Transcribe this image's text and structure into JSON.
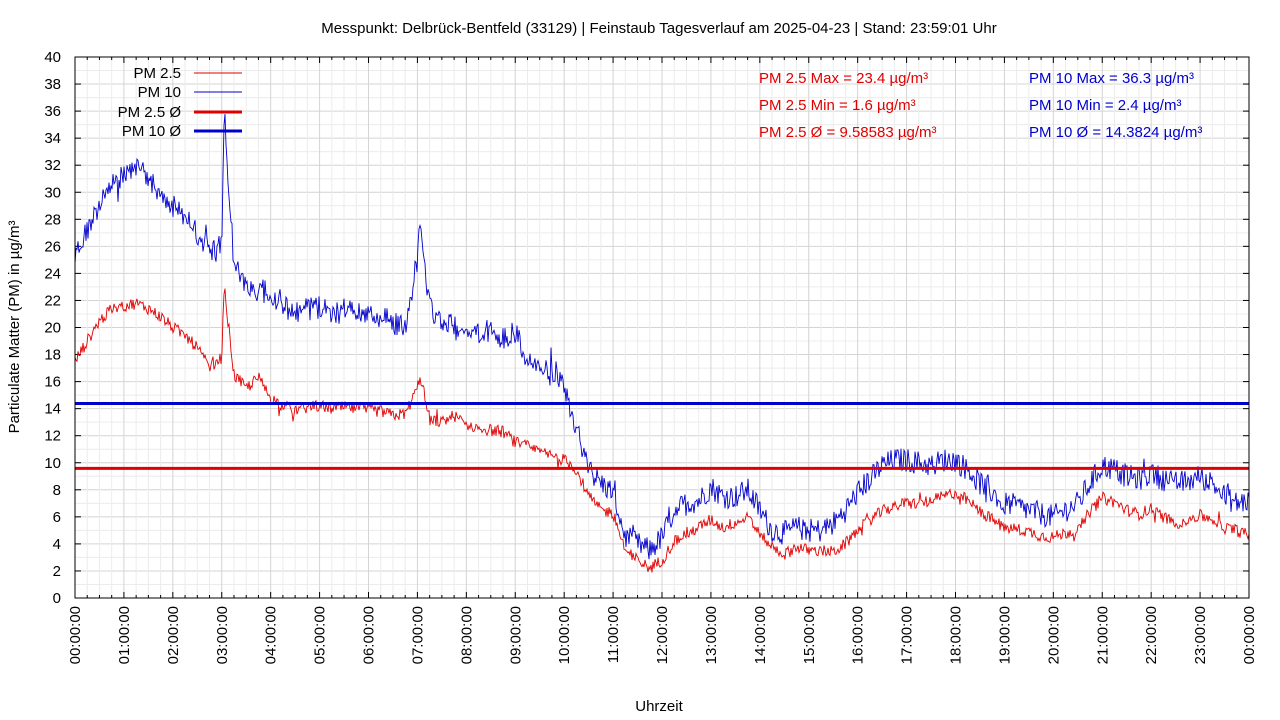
{
  "chart_data": {
    "type": "line",
    "title": "Messpunkt: Delbrück-Bentfeld (33129) | Feinstaub Tagesverlauf am 2025-04-23 | Stand: 23:59:01 Uhr",
    "xlabel": "Uhrzeit",
    "ylabel": "Particulate Matter (PM) in µg/m³",
    "ylim": [
      0,
      40
    ],
    "xlim": [
      "00:00:00",
      "24:00:00"
    ],
    "grid": true,
    "legend_position": "top-left",
    "x_tick_labels": [
      "00:00:00",
      "01:00:00",
      "02:00:00",
      "03:00:00",
      "04:00:00",
      "05:00:00",
      "06:00:00",
      "07:00:00",
      "08:00:00",
      "09:00:00",
      "10:00:00",
      "11:00:00",
      "12:00:00",
      "13:00:00",
      "14:00:00",
      "15:00:00",
      "16:00:00",
      "17:00:00",
      "18:00:00",
      "19:00:00",
      "20:00:00",
      "21:00:00",
      "22:00:00",
      "23:00:00",
      "00:00:00"
    ],
    "y_tick_labels": [
      "0",
      "2",
      "4",
      "6",
      "8",
      "10",
      "12",
      "14",
      "16",
      "18",
      "20",
      "22",
      "24",
      "26",
      "28",
      "30",
      "32",
      "34",
      "36",
      "38",
      "40"
    ],
    "colors": {
      "pm25": "#e00000",
      "pm10": "#0000cc"
    },
    "series": [
      {
        "name": "PM 2.5",
        "color": "#e00000",
        "x_hours": [
          0,
          0.25,
          0.5,
          0.75,
          1,
          1.25,
          1.5,
          1.75,
          2,
          2.25,
          2.5,
          2.75,
          3,
          3.05,
          3.25,
          3.5,
          3.75,
          4,
          4.25,
          4.5,
          4.75,
          5,
          5.25,
          5.5,
          5.75,
          6,
          6.25,
          6.5,
          6.75,
          7,
          7.05,
          7.25,
          7.5,
          7.75,
          8,
          8.25,
          8.5,
          8.75,
          9,
          9.25,
          9.5,
          9.75,
          10,
          10.25,
          10.5,
          10.75,
          11,
          11.25,
          11.5,
          11.75,
          12,
          12.25,
          12.5,
          12.75,
          13,
          13.25,
          13.5,
          13.75,
          14,
          14.25,
          14.5,
          14.75,
          15,
          15.25,
          15.5,
          15.75,
          16,
          16.25,
          16.5,
          16.75,
          17,
          17.25,
          17.5,
          17.75,
          18,
          18.25,
          18.5,
          18.75,
          19,
          19.25,
          19.5,
          19.75,
          20,
          20.25,
          20.5,
          20.75,
          21,
          21.25,
          21.5,
          21.75,
          22,
          22.25,
          22.5,
          22.75,
          23,
          23.25,
          23.5,
          23.75,
          24
        ],
        "values": [
          17.5,
          19,
          20.5,
          21.3,
          21.6,
          21.8,
          21.4,
          20.8,
          20,
          19.4,
          18.5,
          17,
          17.8,
          23,
          16.5,
          15.5,
          16.3,
          14.8,
          14.2,
          13.9,
          14.1,
          14.2,
          14,
          14.1,
          14,
          13.9,
          13.8,
          13.5,
          13.6,
          15.5,
          16.5,
          13.2,
          13,
          13.5,
          12.8,
          12.6,
          12.4,
          12.3,
          11.5,
          11.2,
          10.8,
          10.5,
          10.2,
          9.5,
          7.5,
          6.5,
          6.3,
          3.5,
          2.8,
          2.2,
          2.8,
          4.2,
          4.8,
          5.2,
          5.8,
          5.2,
          5.6,
          5.9,
          4.8,
          3.8,
          3.2,
          3.8,
          3.5,
          3.5,
          3.4,
          4,
          5,
          5.8,
          6.4,
          6.8,
          7,
          7,
          7.2,
          7.5,
          7.8,
          7.2,
          6.4,
          5.8,
          5.2,
          5.1,
          4.9,
          4.6,
          4.5,
          4.8,
          5,
          6.4,
          7.4,
          7.1,
          6.5,
          6.2,
          6.6,
          6,
          5.5,
          5.8,
          6.1,
          5.8,
          5.2,
          5,
          4.6
        ]
      },
      {
        "name": "PM 10",
        "color": "#0000cc",
        "x_hours": [
          0,
          0.25,
          0.5,
          0.75,
          1,
          1.25,
          1.5,
          1.75,
          2,
          2.25,
          2.5,
          2.75,
          3,
          3.05,
          3.25,
          3.5,
          3.75,
          4,
          4.25,
          4.5,
          4.75,
          5,
          5.25,
          5.5,
          5.75,
          6,
          6.25,
          6.5,
          6.75,
          7,
          7.05,
          7.25,
          7.5,
          7.75,
          8,
          8.25,
          8.5,
          8.75,
          9,
          9.25,
          9.5,
          9.75,
          10,
          10.25,
          10.5,
          10.75,
          11,
          11.25,
          11.5,
          11.75,
          12,
          12.25,
          12.5,
          12.75,
          13,
          13.25,
          13.5,
          13.75,
          14,
          14.25,
          14.5,
          14.75,
          15,
          15.25,
          15.5,
          15.75,
          16,
          16.25,
          16.5,
          16.75,
          17,
          17.25,
          17.5,
          17.75,
          18,
          18.25,
          18.5,
          18.75,
          19,
          19.25,
          19.5,
          19.75,
          20,
          20.25,
          20.5,
          20.75,
          21,
          21.25,
          21.5,
          21.75,
          22,
          22.25,
          22.5,
          22.75,
          23,
          23.25,
          23.5,
          23.75,
          24
        ],
        "values": [
          25.5,
          27,
          29,
          30.5,
          31.5,
          32,
          31,
          30,
          29,
          28,
          27,
          25.5,
          26,
          36,
          24.5,
          23.3,
          22.8,
          22.5,
          21.8,
          21,
          21.3,
          21.5,
          21.2,
          21.3,
          21,
          20.8,
          20.9,
          20.3,
          20.2,
          25,
          28,
          21.5,
          20.5,
          20,
          19.5,
          19.6,
          19.8,
          19.3,
          19.6,
          17.5,
          17,
          16.5,
          15.5,
          12.5,
          9.5,
          8.5,
          7.8,
          4.5,
          4,
          3.5,
          4.5,
          6.5,
          7,
          7.2,
          8.2,
          7.5,
          7.5,
          8,
          6.5,
          5,
          4.8,
          5.2,
          5,
          5,
          5.5,
          6.5,
          7.8,
          8.8,
          9.8,
          10.2,
          10.2,
          10,
          9.8,
          10.2,
          10.2,
          9.5,
          8.5,
          7.8,
          7,
          6.8,
          6.5,
          6.2,
          6,
          6.5,
          7,
          8.5,
          9.8,
          9.5,
          9,
          8.8,
          9.2,
          8.8,
          8.5,
          8.6,
          9,
          8.5,
          7.5,
          7,
          7.2
        ]
      },
      {
        "name": "PM 2.5 Ø",
        "color": "#e00000",
        "value": 9.58583
      },
      {
        "name": "PM 10 Ø",
        "color": "#0000cc",
        "value": 14.3824
      }
    ],
    "annotations": [
      {
        "text": "PM 2.5 Max = 23.4 µg/m³",
        "color": "#e00000"
      },
      {
        "text": "PM 2.5 Min = 1.6 µg/m³",
        "color": "#e00000"
      },
      {
        "text": "PM 2.5 Ø = 9.58583 µg/m³",
        "color": "#e00000"
      },
      {
        "text": "PM 10 Max = 36.3 µg/m³",
        "color": "#0000cc"
      },
      {
        "text": "PM 10 Min = 2.4 µg/m³",
        "color": "#0000cc"
      },
      {
        "text": "PM 10 Ø = 14.3824 µg/m³",
        "color": "#0000cc"
      }
    ]
  }
}
